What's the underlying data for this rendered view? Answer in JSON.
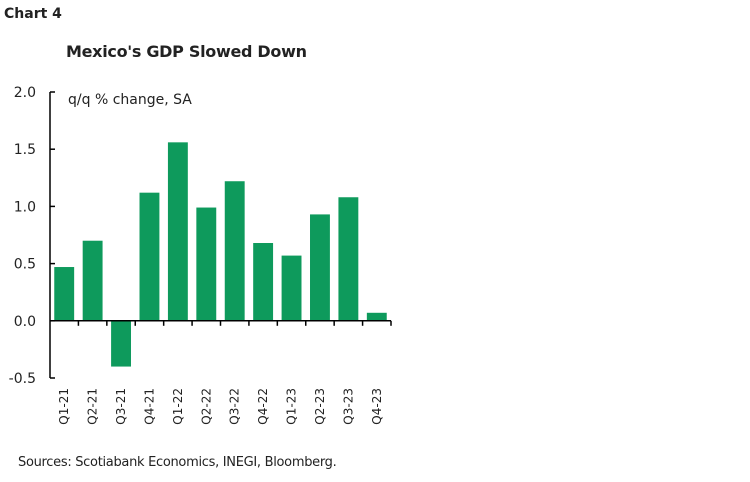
{
  "chart_data": {
    "type": "bar",
    "label": "Chart 4",
    "title": "Mexico's GDP  Slowed Down",
    "ylabel": "q/q % change, SA",
    "categories": [
      "Q1-21",
      "Q2-21",
      "Q3-21",
      "Q4-21",
      "Q1-22",
      "Q2-22",
      "Q3-22",
      "Q4-22",
      "Q1-23",
      "Q2-23",
      "Q3-23",
      "Q4-23"
    ],
    "values": [
      0.47,
      0.7,
      -0.4,
      1.12,
      1.56,
      0.99,
      1.22,
      0.68,
      0.57,
      0.93,
      1.08,
      0.07
    ],
    "ylim": [
      -0.5,
      2.0
    ],
    "yticks": [
      "2.0",
      "1.5",
      "1.0",
      "0.5",
      "0.0",
      "-0.5"
    ],
    "grid": false,
    "bar_color": "#0E9A5C",
    "source": "Sources: Scotiabank Economics, INEGI, Bloomberg."
  }
}
